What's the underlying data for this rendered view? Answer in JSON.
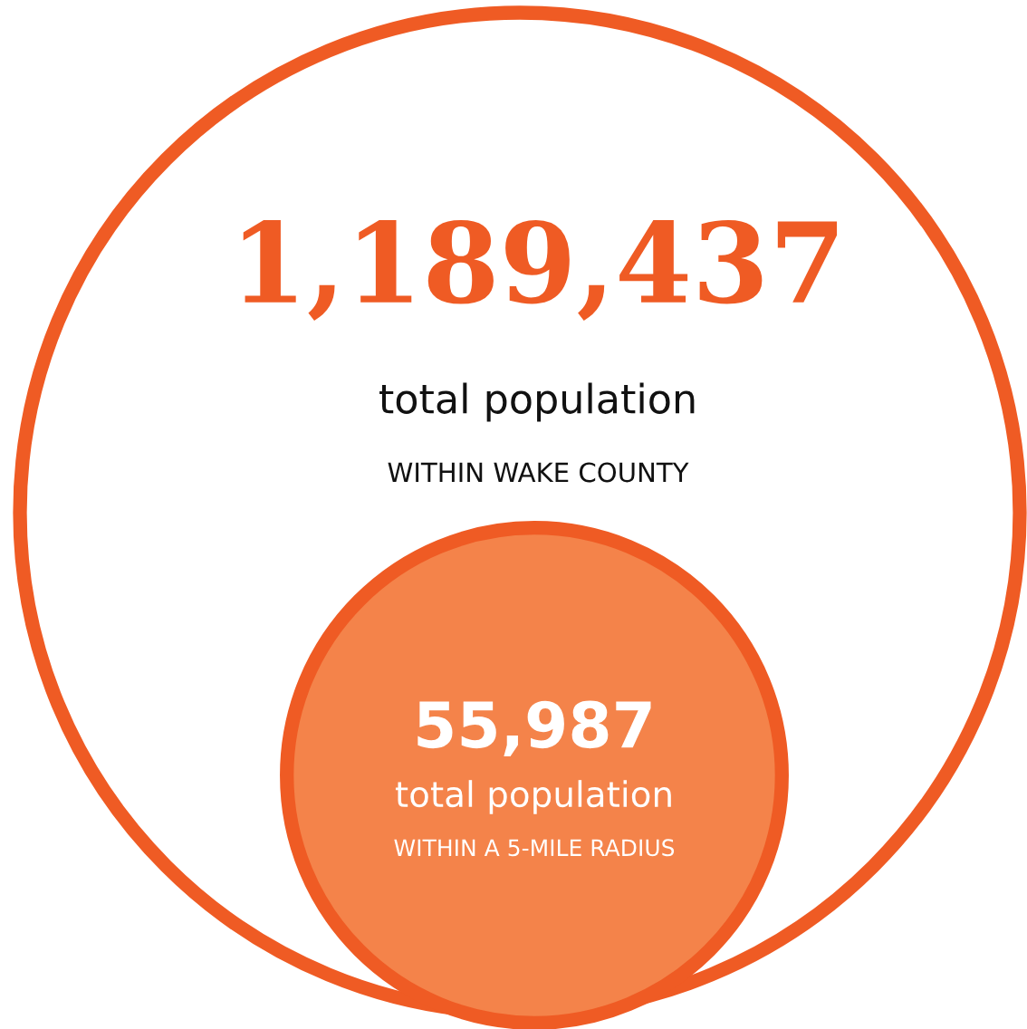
{
  "chart_data": {
    "type": "other",
    "categories": [
      "WITHIN WAKE COUNTY",
      "WITHIN A 5-MILE RADIUS"
    ],
    "values": [
      1189437,
      55987
    ],
    "value_labels": [
      "1,189,437",
      "55,987"
    ],
    "annotations": [
      "total population",
      "total population"
    ],
    "colors": [
      "#ffffff",
      "#f4834a"
    ],
    "color": "#ef5b24"
  }
}
